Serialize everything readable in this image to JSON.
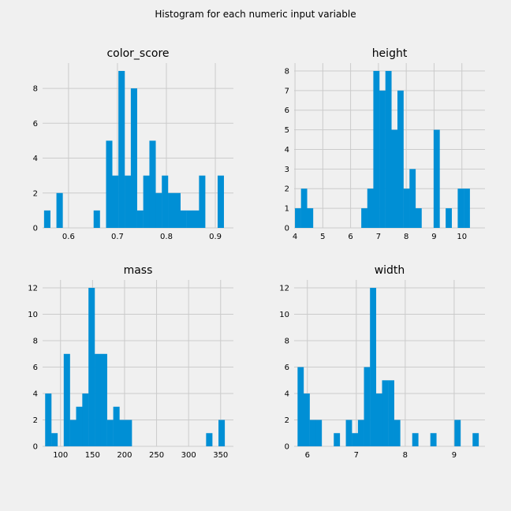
{
  "suptitle": "Histogram for each numeric input variable",
  "colors": {
    "background": "#f0f0f0",
    "bar": "#008fd5",
    "grid": "#cbcbcb"
  },
  "chart_data": [
    {
      "type": "bar",
      "title": "color_score",
      "xlim": [
        0.547,
        0.937
      ],
      "ylim": [
        0,
        9.45
      ],
      "xticks": [
        0.6,
        0.7,
        0.8,
        0.9
      ],
      "xtick_labels": [
        "0.6",
        "0.7",
        "0.8",
        "0.9"
      ],
      "yticks": [
        0,
        2,
        4,
        6,
        8
      ],
      "ytick_labels": [
        "0",
        "2",
        "4",
        "6",
        "8"
      ],
      "bin_edges": [
        0.55,
        0.5627,
        0.5753,
        0.588,
        0.6007,
        0.6133,
        0.626,
        0.6387,
        0.6513,
        0.664,
        0.6767,
        0.6893,
        0.702,
        0.7147,
        0.7273,
        0.74,
        0.7527,
        0.7653,
        0.778,
        0.7907,
        0.8033,
        0.816,
        0.8287,
        0.8413,
        0.854,
        0.8667,
        0.8793,
        0.892,
        0.9047,
        0.9173,
        0.93
      ],
      "counts": [
        1,
        0,
        2,
        0,
        0,
        0,
        0,
        0,
        1,
        0,
        5,
        3,
        9,
        3,
        8,
        1,
        3,
        5,
        2,
        3,
        2,
        2,
        1,
        1,
        1,
        3,
        0,
        0,
        3,
        0
      ],
      "grid": true
    },
    {
      "type": "bar",
      "title": "height",
      "xlim": [
        3.97,
        10.83
      ],
      "ylim": [
        0,
        8.4
      ],
      "xticks": [
        4,
        5,
        6,
        7,
        8,
        9,
        10
      ],
      "xtick_labels": [
        "4",
        "5",
        "6",
        "7",
        "8",
        "9",
        "10"
      ],
      "yticks": [
        0,
        1,
        2,
        3,
        4,
        5,
        6,
        7,
        8
      ],
      "ytick_labels": [
        "0",
        "1",
        "2",
        "3",
        "4",
        "5",
        "6",
        "7",
        "8"
      ],
      "bin_edges": [
        4.0,
        4.2167,
        4.4333,
        4.65,
        4.8667,
        5.0833,
        5.3,
        5.5167,
        5.7333,
        5.95,
        6.1667,
        6.3833,
        6.6,
        6.8167,
        7.0333,
        7.25,
        7.4667,
        7.6833,
        7.9,
        8.1167,
        8.3333,
        8.55,
        8.7667,
        8.9833,
        9.2,
        9.4167,
        9.6333,
        9.85,
        10.0667,
        10.2833,
        10.5
      ],
      "counts": [
        1,
        2,
        1,
        0,
        0,
        0,
        0,
        0,
        0,
        0,
        0,
        1,
        2,
        8,
        7,
        8,
        5,
        7,
        2,
        3,
        1,
        0,
        0,
        5,
        0,
        1,
        0,
        2,
        2,
        0
      ],
      "grid": true
    },
    {
      "type": "bar",
      "title": "mass",
      "xlim": [
        72,
        370
      ],
      "ylim": [
        0,
        12.6
      ],
      "xticks": [
        100,
        150,
        200,
        250,
        300,
        350
      ],
      "xtick_labels": [
        "100",
        "150",
        "200",
        "250",
        "300",
        "350"
      ],
      "yticks": [
        0,
        2,
        4,
        6,
        8,
        10,
        12
      ],
      "ytick_labels": [
        "0",
        "2",
        "4",
        "6",
        "8",
        "10",
        "12"
      ],
      "bin_edges": [
        76.0,
        85.6667,
        95.3333,
        105.0,
        114.6667,
        124.3333,
        134.0,
        143.6667,
        153.3333,
        163.0,
        172.6667,
        182.3333,
        192.0,
        201.6667,
        211.3333,
        221.0,
        230.6667,
        240.3333,
        250.0,
        259.6667,
        269.3333,
        279.0,
        288.6667,
        298.3333,
        308.0,
        317.6667,
        327.3333,
        337.0,
        346.6667,
        356.3333,
        366.0
      ],
      "counts": [
        4,
        1,
        0,
        7,
        2,
        3,
        4,
        12,
        7,
        7,
        2,
        3,
        2,
        2,
        0,
        0,
        0,
        0,
        0,
        0,
        0,
        0,
        0,
        0,
        0,
        0,
        1,
        0,
        2,
        0
      ],
      "grid": true
    },
    {
      "type": "bar",
      "title": "width",
      "xlim": [
        5.73,
        9.63
      ],
      "ylim": [
        0,
        12.6
      ],
      "xticks": [
        6,
        7,
        8,
        9
      ],
      "xtick_labels": [
        "6",
        "7",
        "8",
        "9"
      ],
      "yticks": [
        0,
        2,
        4,
        6,
        8,
        10,
        12
      ],
      "ytick_labels": [
        "0",
        "2",
        "4",
        "6",
        "8",
        "10",
        "12"
      ],
      "bin_edges": [
        5.8,
        5.9233,
        6.0467,
        6.17,
        6.2933,
        6.4167,
        6.54,
        6.6633,
        6.7867,
        6.91,
        7.0333,
        7.1567,
        7.28,
        7.4033,
        7.5267,
        7.65,
        7.7733,
        7.8967,
        8.02,
        8.1433,
        8.2667,
        8.39,
        8.5133,
        8.6367,
        8.76,
        8.8833,
        9.0067,
        9.13,
        9.2533,
        9.3767,
        9.5
      ],
      "counts": [
        6,
        4,
        2,
        2,
        0,
        0,
        1,
        0,
        2,
        1,
        2,
        6,
        12,
        4,
        5,
        5,
        2,
        0,
        0,
        1,
        0,
        0,
        1,
        0,
        0,
        0,
        2,
        0,
        0,
        1
      ],
      "grid": true
    }
  ]
}
